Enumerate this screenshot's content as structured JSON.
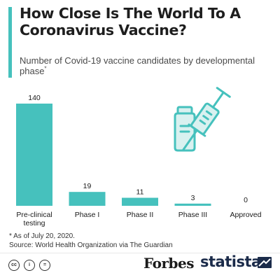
{
  "title": "How Close Is The World To A Coronavirus Vaccine?",
  "subtitle": "Number of Covid-19 vaccine candidates by developmental phase",
  "subtitle_marker": "*",
  "colors": {
    "accent": "#46c1bd",
    "bar": "#46c1bd"
  },
  "chart_data": {
    "type": "bar",
    "categories": [
      "Pre-clinical testing",
      "Phase I",
      "Phase II",
      "Phase III",
      "Approved"
    ],
    "category_labels": [
      [
        "Pre-clinical",
        "testing"
      ],
      [
        "Phase I"
      ],
      [
        "Phase II"
      ],
      [
        "Phase III"
      ],
      [
        "Approved"
      ]
    ],
    "values": [
      140,
      19,
      11,
      3,
      0
    ],
    "data_labels": [
      "140",
      "19",
      "11",
      "3",
      "0"
    ],
    "xlabel": "",
    "ylabel": "",
    "ylim": [
      0,
      140
    ],
    "grid": false,
    "legend": "none"
  },
  "illustration": {
    "icon": "vaccine-vial-and-syringe-icon"
  },
  "notes": {
    "footnote": "* As of July 20, 2020.",
    "source": "Source: World Health Organization via The Guardian"
  },
  "footer": {
    "license_icons": [
      "cc-icon",
      "attribution-icon",
      "equals-icon"
    ],
    "license_glyphs": [
      "cc",
      "i",
      "="
    ],
    "partner": "Forbes",
    "brand": "statista"
  }
}
